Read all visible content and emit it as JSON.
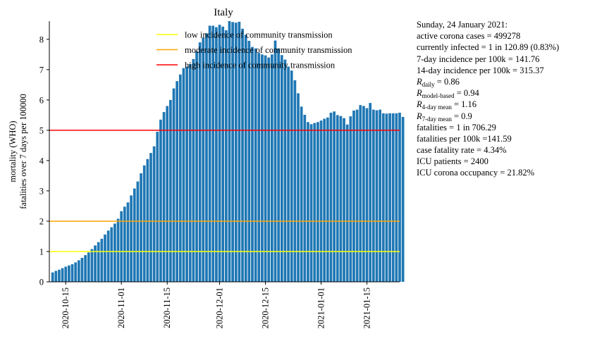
{
  "chart_data": {
    "type": "bar",
    "title": "Italy",
    "ylabel_lines": [
      "mortality (WHO)",
      "fatalities over 7 days per 100000"
    ],
    "xlabel": "",
    "x_start": "2020-10-11",
    "ylim": [
      0,
      8.6
    ],
    "xlim": [
      "2020-10-10",
      "2021-01-25"
    ],
    "yticks": [
      0,
      1,
      2,
      3,
      4,
      5,
      6,
      7,
      8
    ],
    "xticks": [
      "2020-10-15",
      "2020-11-01",
      "2020-11-15",
      "2020-12-01",
      "2020-12-15",
      "2021-01-01",
      "2021-01-15"
    ],
    "bar_color": "#1f77b4",
    "values": [
      0.31,
      0.36,
      0.4,
      0.45,
      0.5,
      0.54,
      0.58,
      0.64,
      0.71,
      0.79,
      0.88,
      0.97,
      1.08,
      1.2,
      1.31,
      1.42,
      1.56,
      1.69,
      1.8,
      1.92,
      2.08,
      2.33,
      2.48,
      2.62,
      2.85,
      3.08,
      3.31,
      3.58,
      3.84,
      4.05,
      4.25,
      4.47,
      4.95,
      5.35,
      5.6,
      5.8,
      6.0,
      6.38,
      6.62,
      6.84,
      7.05,
      7.1,
      7.18,
      7.35,
      7.6,
      7.9,
      8.05,
      8.2,
      8.45,
      8.45,
      8.4,
      8.48,
      8.42,
      8.3,
      8.6,
      8.57,
      8.55,
      8.58,
      8.35,
      8.15,
      7.95,
      7.75,
      7.7,
      7.55,
      7.5,
      7.47,
      7.4,
      7.5,
      7.96,
      7.7,
      7.48,
      7.33,
      7.1,
      6.97,
      6.65,
      6.22,
      5.78,
      5.51,
      5.27,
      5.2,
      5.24,
      5.27,
      5.32,
      5.38,
      5.42,
      5.58,
      5.62,
      5.5,
      5.47,
      5.4,
      5.19,
      5.46,
      5.65,
      5.68,
      5.83,
      5.8,
      5.73,
      5.9,
      5.68,
      5.66,
      5.68,
      5.56,
      5.55,
      5.56,
      5.56,
      5.56,
      5.58,
      5.44
    ],
    "thresholds": [
      {
        "name": "low incidence of community transmission",
        "value": 1,
        "color": "#ffff00"
      },
      {
        "name": "moderate incidence of community transmission",
        "value": 2,
        "color": "#ffa500"
      },
      {
        "name": "high incidence of community transmission",
        "value": 5,
        "color": "#ff0000"
      }
    ],
    "legend_position": "upper-center",
    "grid": false
  },
  "info": {
    "date_line": "Sunday, 24 January 2021:",
    "active_cases": "active corona cases = 499278",
    "currently_infected": "currently infected = 1 in 120.89 (0.83%)",
    "incidence_7": "7-day incidence per 100k = 141.76",
    "incidence_14": "14-day incidence per 100k = 315.37",
    "r_daily": {
      "symbol": "R",
      "sub": "daily",
      "value": " = 0.86"
    },
    "r_model": {
      "symbol": "R",
      "sub": "model-based",
      "value": " = 0.94"
    },
    "r_4day": {
      "symbol": "R",
      "sub": "4-day mean",
      "value": " = 1.16"
    },
    "r_7day": {
      "symbol": "R",
      "sub": "7-day mean",
      "value": " = 0.9"
    },
    "fatalities": "fatalities = 1 in 706.29",
    "fatalities_100k": "fatalities per 100k =141.59",
    "cfr": "case fatality rate = 4.34%",
    "icu_patients": "ICU patients = 2400",
    "icu_occupancy": "ICU corona occupancy = 21.82%"
  }
}
